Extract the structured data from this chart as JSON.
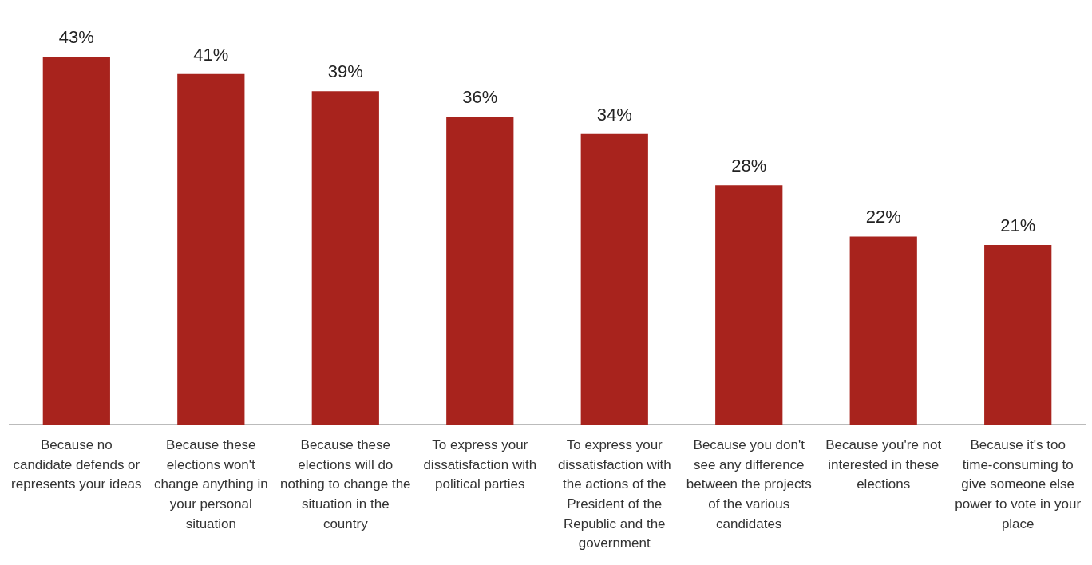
{
  "chart_data": {
    "type": "bar",
    "categories": [
      "Because no candidate defends or represents your ideas",
      "Because these elections won't change anything in your personal situation",
      "Because these elections will do nothing to change the situation in the country",
      "To express your dissatisfaction with political parties",
      "To express your dissatisfaction with the actions of the President of the Republic and the government",
      "Because you don't see any difference between the projects of the various candidates",
      "Because you're not interested in these elections",
      "Because it's too time-consuming to give someone else power to vote in your place"
    ],
    "values": [
      43,
      41,
      39,
      36,
      34,
      28,
      22,
      21
    ],
    "value_labels": [
      "43%",
      "41%",
      "39%",
      "36%",
      "34%",
      "28%",
      "22%",
      "21%"
    ],
    "color": "#a8231d",
    "grid": false,
    "legend": false
  }
}
